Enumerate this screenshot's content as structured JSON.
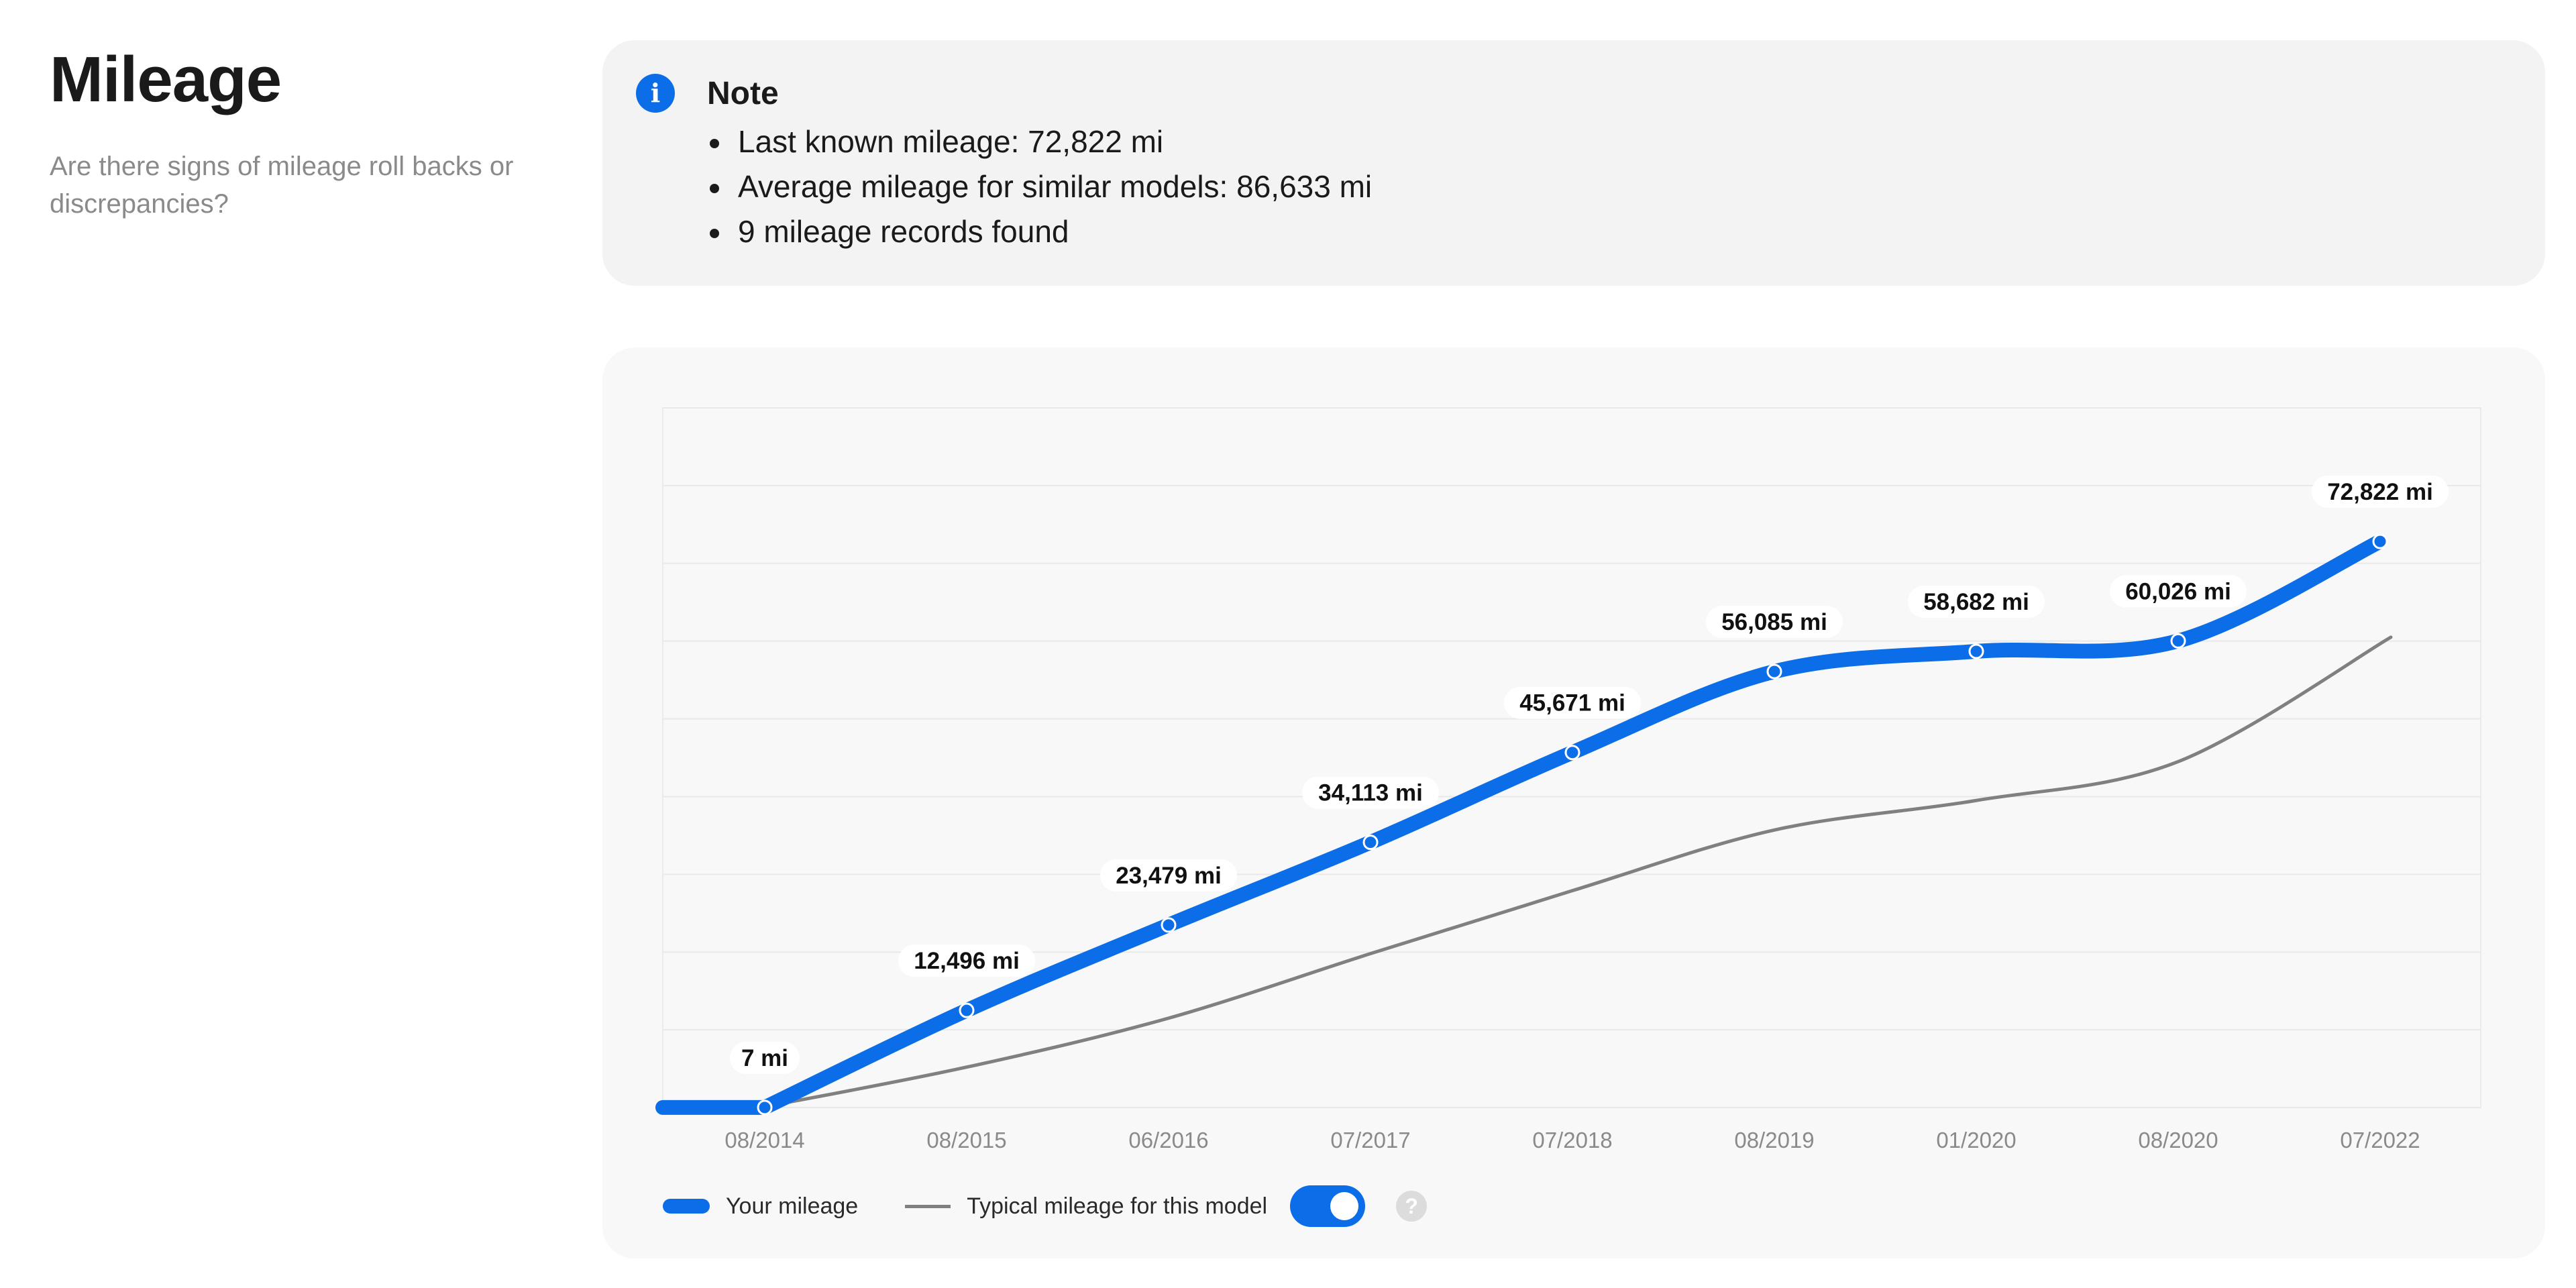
{
  "header": {
    "title": "Mileage",
    "subtitle": "Are there signs of mileage roll backs or discrepancies?"
  },
  "note": {
    "title": "Note",
    "icon": "info-icon",
    "items": [
      "Last known mileage: 72,822 mi",
      "Average mileage for similar models: 86,633 mi",
      "9 mileage records found"
    ]
  },
  "legend": {
    "your_label": "Your mileage",
    "typical_label": "Typical mileage for this model",
    "toggle_on": true,
    "help_glyph": "?"
  },
  "colors": {
    "accent": "#0b6ee8",
    "typical": "#808080"
  },
  "chart_data": {
    "type": "line",
    "categories": [
      "08/2014",
      "08/2015",
      "06/2016",
      "07/2017",
      "07/2018",
      "08/2019",
      "01/2020",
      "08/2020",
      "07/2022"
    ],
    "series": [
      {
        "name": "Your mileage",
        "values": [
          7,
          12496,
          23479,
          34113,
          45671,
          56085,
          58682,
          60026,
          72822
        ],
        "labels": [
          "7 mi",
          "12,496 mi",
          "23,479 mi",
          "34,113 mi",
          "45,671 mi",
          "56,085 mi",
          "58,682 mi",
          "60,026 mi",
          "72,822 mi"
        ]
      },
      {
        "name": "Typical mileage for this model",
        "values": [
          100,
          5200,
          11500,
          19800,
          27900,
          35700,
          39500,
          44500,
          60500
        ]
      }
    ],
    "ylim": [
      0,
      90000
    ],
    "grid": true,
    "legend_position": "bottom-left"
  }
}
